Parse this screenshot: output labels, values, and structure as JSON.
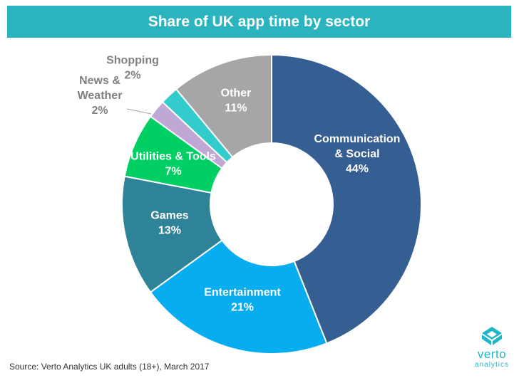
{
  "title": "Share of UK app time by sector",
  "source": "Source: Verto Analytics UK adults (18+), March 2017",
  "logo": {
    "word": "verto",
    "sub": "analytics"
  },
  "chart_data": {
    "type": "pie",
    "donut": true,
    "slices": [
      {
        "name": "Communication & Social",
        "lines": [
          "Communication",
          "& Social",
          "44%"
        ],
        "value": 44,
        "color": "#355e92",
        "text_color": "#ffffff"
      },
      {
        "name": "Entertainment",
        "lines": [
          "Entertainment",
          "21%"
        ],
        "value": 21,
        "color": "#08adef",
        "text_color": "#ffffff"
      },
      {
        "name": "Games",
        "lines": [
          "Games",
          "13%"
        ],
        "value": 13,
        "color": "#2f8398",
        "text_color": "#ffffff"
      },
      {
        "name": "Utilities & Tools",
        "lines": [
          "Utilities & Tools",
          "7%"
        ],
        "value": 7,
        "color": "#00d063",
        "text_color": "#ffffff"
      },
      {
        "name": "News & Weather",
        "lines": [
          "News &",
          "Weather",
          "2%"
        ],
        "value": 2,
        "color": "#bfa8d5",
        "text_color": "#808080"
      },
      {
        "name": "Shopping",
        "lines": [
          "Shopping",
          "2%"
        ],
        "value": 2,
        "color": "#33cccc",
        "text_color": "#808080"
      },
      {
        "name": "Other",
        "lines": [
          "Other",
          "11%"
        ],
        "value": 11,
        "color": "#a6a6a6",
        "text_color": "#ffffff"
      }
    ]
  }
}
